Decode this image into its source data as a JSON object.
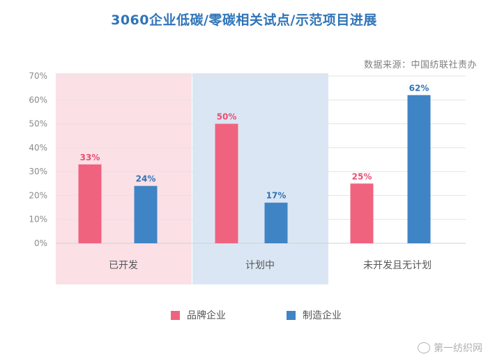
{
  "title": "3060企业低碳/零碳相关试点/示范项目进展",
  "source": "数据来源：中国纺联社责办",
  "watermark": "第一纺织网",
  "colors": {
    "brand": "#f0637f",
    "manufacturing": "#3f84c5",
    "title": "#2f74b8",
    "band_1": "#fbe0e6",
    "band_2": "#dbe6f4",
    "band_3": "#ffffff"
  },
  "chart_data": {
    "type": "bar",
    "title": "3060企业低碳/零碳相关试点/示范项目进展",
    "categories": [
      "已开发",
      "计划中",
      "未开发且无计划"
    ],
    "series": [
      {
        "name": "品牌企业",
        "values": [
          33,
          50,
          25
        ],
        "labels": [
          "33%",
          "50%",
          "25%"
        ]
      },
      {
        "name": "制造企业",
        "values": [
          24,
          17,
          62
        ],
        "labels": [
          "24%",
          "17%",
          "62%"
        ]
      }
    ],
    "yticks": [
      "0%",
      "10%",
      "20%",
      "30%",
      "40%",
      "50%",
      "60%",
      "70%"
    ],
    "ylim": [
      0,
      70
    ],
    "grid": true,
    "legend": "bottom"
  }
}
